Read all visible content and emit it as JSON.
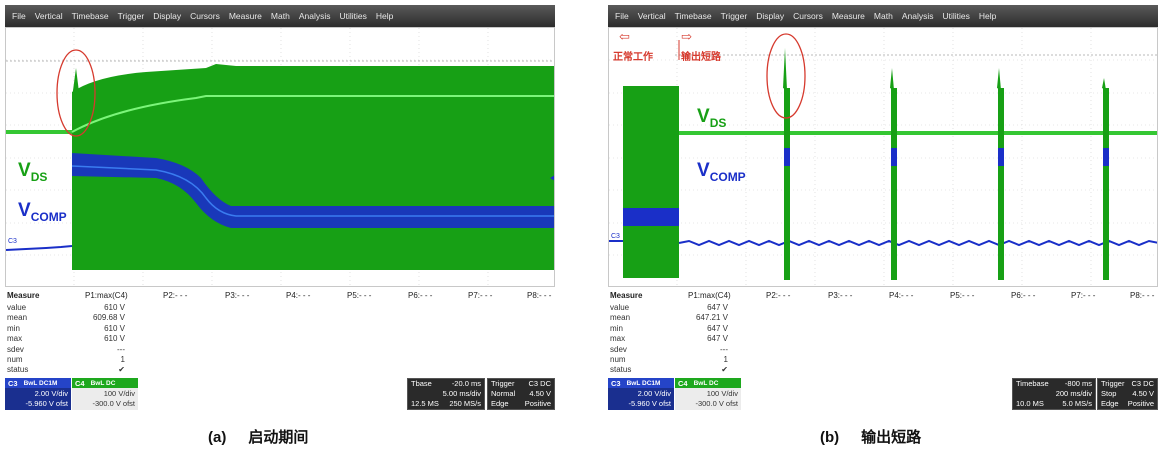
{
  "menu": [
    "File",
    "Vertical",
    "Timebase",
    "Trigger",
    "Display",
    "Cursors",
    "Measure",
    "Math",
    "Analysis",
    "Utilities",
    "Help"
  ],
  "colors": {
    "vds": "#17a015",
    "vds_bright": "#6cf06a",
    "vcomp": "#1a2fc8",
    "annotation": "#d63a2e"
  },
  "panels": [
    {
      "trace_labels": {
        "vds_main": "V",
        "vds_sub": "DS",
        "vcomp_main": "V",
        "vcomp_sub": "COMP",
        "channel_marker": "C3"
      },
      "measure": {
        "header": [
          "Measure",
          "P1:max(C4)",
          "P2:- - -",
          "P3:- - -",
          "P4:- - -",
          "P5:- - -",
          "P6:- - -",
          "P7:- - -",
          "P8:- - -"
        ],
        "row_labels": [
          "value",
          "mean",
          "min",
          "max",
          "sdev",
          "num",
          "status"
        ],
        "values": [
          "610 V",
          "609.68 V",
          "610 V",
          "610 V",
          "---",
          "1",
          "✔"
        ]
      },
      "channels": {
        "c3": {
          "name": "C3",
          "badge": "BwL DC1M",
          "scale": "2.00 V/div",
          "offset": "-5.960 V ofst"
        },
        "c4": {
          "name": "C4",
          "badge": "BwL DC",
          "scale": "100 V/div",
          "offset": "-300.0 V ofst"
        }
      },
      "timebase": {
        "label": "Tbase",
        "value": "-20.0 ms",
        "div": "5.00 ms/div",
        "samples": "12.5 MS",
        "rate": "250 MS/s"
      },
      "trigger": {
        "label": "Trigger",
        "badge": "C3 DC",
        "mode": "Normal",
        "level": "4.50 V",
        "type": "Edge",
        "slope": "Positive"
      },
      "caption": {
        "letter": "(a)",
        "text": "启动期间"
      }
    },
    {
      "annotations": {
        "left_arrow": "⇦",
        "right_arrow": "⇨",
        "left_text": "正常工作",
        "right_text": "输出短路"
      },
      "trace_labels": {
        "vds_main": "V",
        "vds_sub": "DS",
        "vcomp_main": "V",
        "vcomp_sub": "COMP",
        "channel_marker": "C3"
      },
      "measure": {
        "header": [
          "Measure",
          "P1:max(C4)",
          "P2:- - -",
          "P3:- - -",
          "P4:- - -",
          "P5:- - -",
          "P6:- - -",
          "P7:- - -",
          "P8:- - -"
        ],
        "row_labels": [
          "value",
          "mean",
          "min",
          "max",
          "sdev",
          "num",
          "status"
        ],
        "values": [
          "647 V",
          "647.21 V",
          "647 V",
          "647 V",
          "---",
          "1",
          "✔"
        ]
      },
      "channels": {
        "c3": {
          "name": "C3",
          "badge": "BwL DC1M",
          "scale": "2.00 V/div",
          "offset": "-5.960 V ofst"
        },
        "c4": {
          "name": "C4",
          "badge": "BwL DC",
          "scale": "100 V/div",
          "offset": "-300.0 V ofst"
        }
      },
      "timebase": {
        "label": "Timebase",
        "value": "-800 ms",
        "div": "200 ms/div",
        "samples": "10.0 MS",
        "rate": "5.0 MS/s"
      },
      "trigger": {
        "label": "Trigger",
        "badge": "C3 DC",
        "mode": "Stop",
        "level": "4.50 V",
        "type": "Edge",
        "slope": "Positive"
      },
      "caption": {
        "letter": "(b)",
        "text": "输出短路"
      }
    }
  ]
}
